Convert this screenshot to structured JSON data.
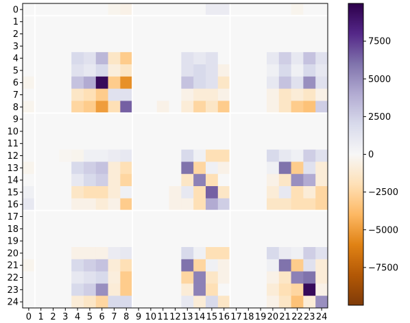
{
  "chart_data": {
    "type": "heatmap",
    "title": "",
    "xlabel": "",
    "ylabel": "",
    "x_labels": [
      "0",
      "1",
      "2",
      "3",
      "4",
      "5",
      "6",
      "7",
      "8",
      "9",
      "10",
      "11",
      "12",
      "13",
      "14",
      "15",
      "16",
      "17",
      "18",
      "19",
      "20",
      "21",
      "22",
      "23",
      "24"
    ],
    "y_labels": [
      "0",
      "1",
      "2",
      "3",
      "4",
      "5",
      "6",
      "7",
      "8",
      "9",
      "10",
      "11",
      "12",
      "13",
      "14",
      "15",
      "16",
      "17",
      "18",
      "19",
      "20",
      "21",
      "22",
      "23",
      "24"
    ],
    "color_range": [
      -10000,
      10000
    ],
    "colorbar_ticks": [
      7500,
      5000,
      2500,
      0,
      -2500,
      -5000,
      -7500
    ],
    "colormap": "PuOr",
    "separators_at": [
      1,
      9,
      17
    ],
    "separator_color": "#ffffff",
    "values": [
      [
        0,
        0,
        0,
        0,
        0,
        0,
        0,
        -300,
        -500,
        0,
        0,
        0,
        0,
        0,
        0,
        800,
        800,
        0,
        0,
        0,
        0,
        0,
        -300,
        0,
        0
      ],
      [
        0,
        0,
        0,
        0,
        0,
        0,
        0,
        0,
        0,
        0,
        0,
        0,
        0,
        0,
        0,
        0,
        0,
        0,
        0,
        0,
        0,
        0,
        0,
        0,
        0
      ],
      [
        0,
        0,
        0,
        0,
        0,
        0,
        0,
        0,
        0,
        0,
        0,
        0,
        0,
        0,
        0,
        0,
        0,
        0,
        0,
        0,
        0,
        0,
        0,
        0,
        0
      ],
      [
        0,
        0,
        0,
        0,
        0,
        0,
        0,
        0,
        0,
        0,
        0,
        0,
        0,
        0,
        0,
        0,
        0,
        0,
        0,
        0,
        0,
        0,
        0,
        0,
        0
      ],
      [
        0,
        0,
        0,
        0,
        2000,
        1500,
        3500,
        -1500,
        -3000,
        0,
        0,
        0,
        0,
        1500,
        1000,
        1500,
        0,
        0,
        0,
        0,
        1000,
        2500,
        1000,
        3000,
        1500
      ],
      [
        0,
        0,
        0,
        0,
        1500,
        1000,
        2000,
        -800,
        -1500,
        0,
        0,
        0,
        0,
        1500,
        2000,
        1500,
        -500,
        0,
        0,
        0,
        500,
        2000,
        500,
        2000,
        1000
      ],
      [
        -300,
        0,
        0,
        0,
        3000,
        4000,
        9500,
        -3000,
        -5500,
        0,
        0,
        0,
        0,
        3000,
        2000,
        1500,
        -1500,
        0,
        0,
        0,
        1000,
        3000,
        1500,
        5000,
        1500
      ],
      [
        0,
        0,
        0,
        0,
        -1500,
        -2000,
        -3000,
        1500,
        1500,
        0,
        0,
        0,
        0,
        -500,
        -1000,
        -1000,
        -500,
        0,
        0,
        0,
        -500,
        -1500,
        -1000,
        -1500,
        -500
      ],
      [
        -300,
        0,
        0,
        0,
        -2500,
        -3000,
        -5000,
        -2000,
        6500,
        0,
        0,
        -500,
        0,
        -1000,
        -2500,
        -1500,
        -3000,
        0,
        0,
        0,
        -500,
        -1500,
        -3000,
        -3500,
        2500
      ],
      [
        0,
        0,
        0,
        0,
        0,
        0,
        0,
        0,
        0,
        0,
        0,
        0,
        0,
        0,
        0,
        0,
        0,
        0,
        0,
        0,
        0,
        0,
        0,
        0,
        0
      ],
      [
        0,
        0,
        0,
        0,
        0,
        0,
        0,
        0,
        0,
        0,
        0,
        0,
        0,
        0,
        0,
        0,
        0,
        0,
        0,
        0,
        0,
        0,
        0,
        0,
        0
      ],
      [
        0,
        0,
        0,
        0,
        0,
        0,
        0,
        0,
        0,
        0,
        0,
        0,
        0,
        0,
        0,
        0,
        0,
        0,
        0,
        0,
        0,
        0,
        0,
        0,
        0
      ],
      [
        0,
        0,
        0,
        -200,
        -300,
        500,
        500,
        800,
        1000,
        0,
        0,
        0,
        0,
        2000,
        500,
        -2000,
        -2000,
        0,
        0,
        0,
        2000,
        1000,
        500,
        2500,
        1500
      ],
      [
        -300,
        0,
        0,
        0,
        2000,
        2500,
        3000,
        -1000,
        -2000,
        0,
        0,
        0,
        0,
        6000,
        -2500,
        500,
        -500,
        0,
        0,
        0,
        500,
        6000,
        -3000,
        1500,
        -1000
      ],
      [
        0,
        0,
        0,
        0,
        1000,
        2000,
        2500,
        -1000,
        -2500,
        0,
        0,
        0,
        0,
        -1500,
        5500,
        -2000,
        0,
        0,
        0,
        0,
        -500,
        -1500,
        5000,
        4000,
        -1000
      ],
      [
        500,
        0,
        0,
        0,
        -1500,
        -2000,
        -2000,
        -1000,
        500,
        0,
        0,
        0,
        -500,
        1000,
        -2000,
        6500,
        -1500,
        0,
        0,
        0,
        -1000,
        1000,
        -2000,
        -1000,
        -2500
      ],
      [
        1000,
        0,
        0,
        0,
        -500,
        -500,
        -1000,
        -500,
        -3000,
        0,
        0,
        0,
        -500,
        -500,
        -2000,
        4000,
        2500,
        0,
        0,
        0,
        -1500,
        -1500,
        -2000,
        -2000,
        -2500
      ],
      [
        0,
        0,
        0,
        0,
        0,
        0,
        0,
        0,
        0,
        0,
        0,
        0,
        0,
        0,
        0,
        0,
        0,
        0,
        0,
        0,
        0,
        0,
        0,
        0,
        0
      ],
      [
        0,
        0,
        0,
        0,
        0,
        0,
        0,
        0,
        0,
        0,
        0,
        0,
        0,
        0,
        0,
        0,
        0,
        0,
        0,
        0,
        0,
        0,
        0,
        0,
        0
      ],
      [
        0,
        0,
        0,
        0,
        0,
        0,
        0,
        0,
        0,
        0,
        0,
        0,
        0,
        0,
        0,
        0,
        0,
        0,
        0,
        0,
        0,
        0,
        0,
        0,
        0
      ],
      [
        0,
        0,
        0,
        0,
        -500,
        -500,
        -500,
        800,
        1000,
        0,
        0,
        0,
        0,
        2000,
        500,
        -2000,
        -2000,
        0,
        0,
        0,
        2000,
        800,
        500,
        2500,
        1500
      ],
      [
        -300,
        0,
        0,
        0,
        2000,
        2500,
        3000,
        -1000,
        -2000,
        0,
        0,
        0,
        0,
        6000,
        -2500,
        500,
        -500,
        0,
        0,
        0,
        500,
        6000,
        -3000,
        1500,
        -1000
      ],
      [
        0,
        0,
        0,
        0,
        1000,
        1500,
        2000,
        -800,
        -3000,
        0,
        0,
        0,
        0,
        -2500,
        5500,
        -1500,
        -500,
        0,
        0,
        0,
        -500,
        -1500,
        5500,
        6000,
        -1000
      ],
      [
        0,
        0,
        0,
        0,
        2000,
        2500,
        5000,
        -1000,
        -3000,
        0,
        0,
        0,
        0,
        -1000,
        5500,
        -2000,
        0,
        0,
        0,
        0,
        -1000,
        -2000,
        -2500,
        9500,
        -500
      ],
      [
        0,
        0,
        0,
        0,
        -1000,
        -1500,
        -2500,
        2000,
        2000,
        0,
        0,
        0,
        0,
        1000,
        -1000,
        2000,
        -1500,
        0,
        0,
        0,
        -500,
        -1500,
        -3500,
        -1000,
        5000
      ]
    ]
  }
}
